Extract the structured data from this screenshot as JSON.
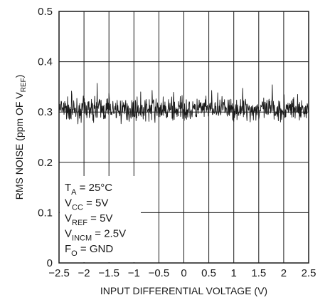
{
  "chart_data": {
    "type": "line",
    "title": "",
    "xlabel": "INPUT DIFFERENTIAL VOLTAGE (V)",
    "ylabel": {
      "main": "RMS NOISE (ppm OF V",
      "sub": "REF",
      "end": ")"
    },
    "xlim": [
      -2.5,
      2.5
    ],
    "ylim": [
      0,
      0.5
    ],
    "grid": true,
    "x_ticks": [
      "-2.5",
      "-2",
      "-1.5",
      "-1",
      "-0.5",
      "0",
      "0.5",
      "1",
      "1.5",
      "2",
      "2.5"
    ],
    "y_ticks": [
      "0",
      "0.1",
      "0.2",
      "0.3",
      "0.4",
      "0.5"
    ],
    "series": [
      {
        "name": "",
        "mean": 0.305,
        "x_range": [
          -2.5,
          2.5
        ],
        "noise_min": 0.27,
        "noise_max": 0.365,
        "color": "#1a1a1a"
      }
    ],
    "conditions": [
      {
        "main": "T",
        "sub": "A",
        "rest": " = 25°C"
      },
      {
        "main": "V",
        "sub": "CC",
        "rest": " = 5V"
      },
      {
        "main": "V",
        "sub": "REF",
        "rest": " = 5V"
      },
      {
        "main": "V",
        "sub": "INCM",
        "rest": " = 2.5V"
      },
      {
        "main": "F",
        "sub": "O",
        "rest": " = GND"
      }
    ]
  }
}
